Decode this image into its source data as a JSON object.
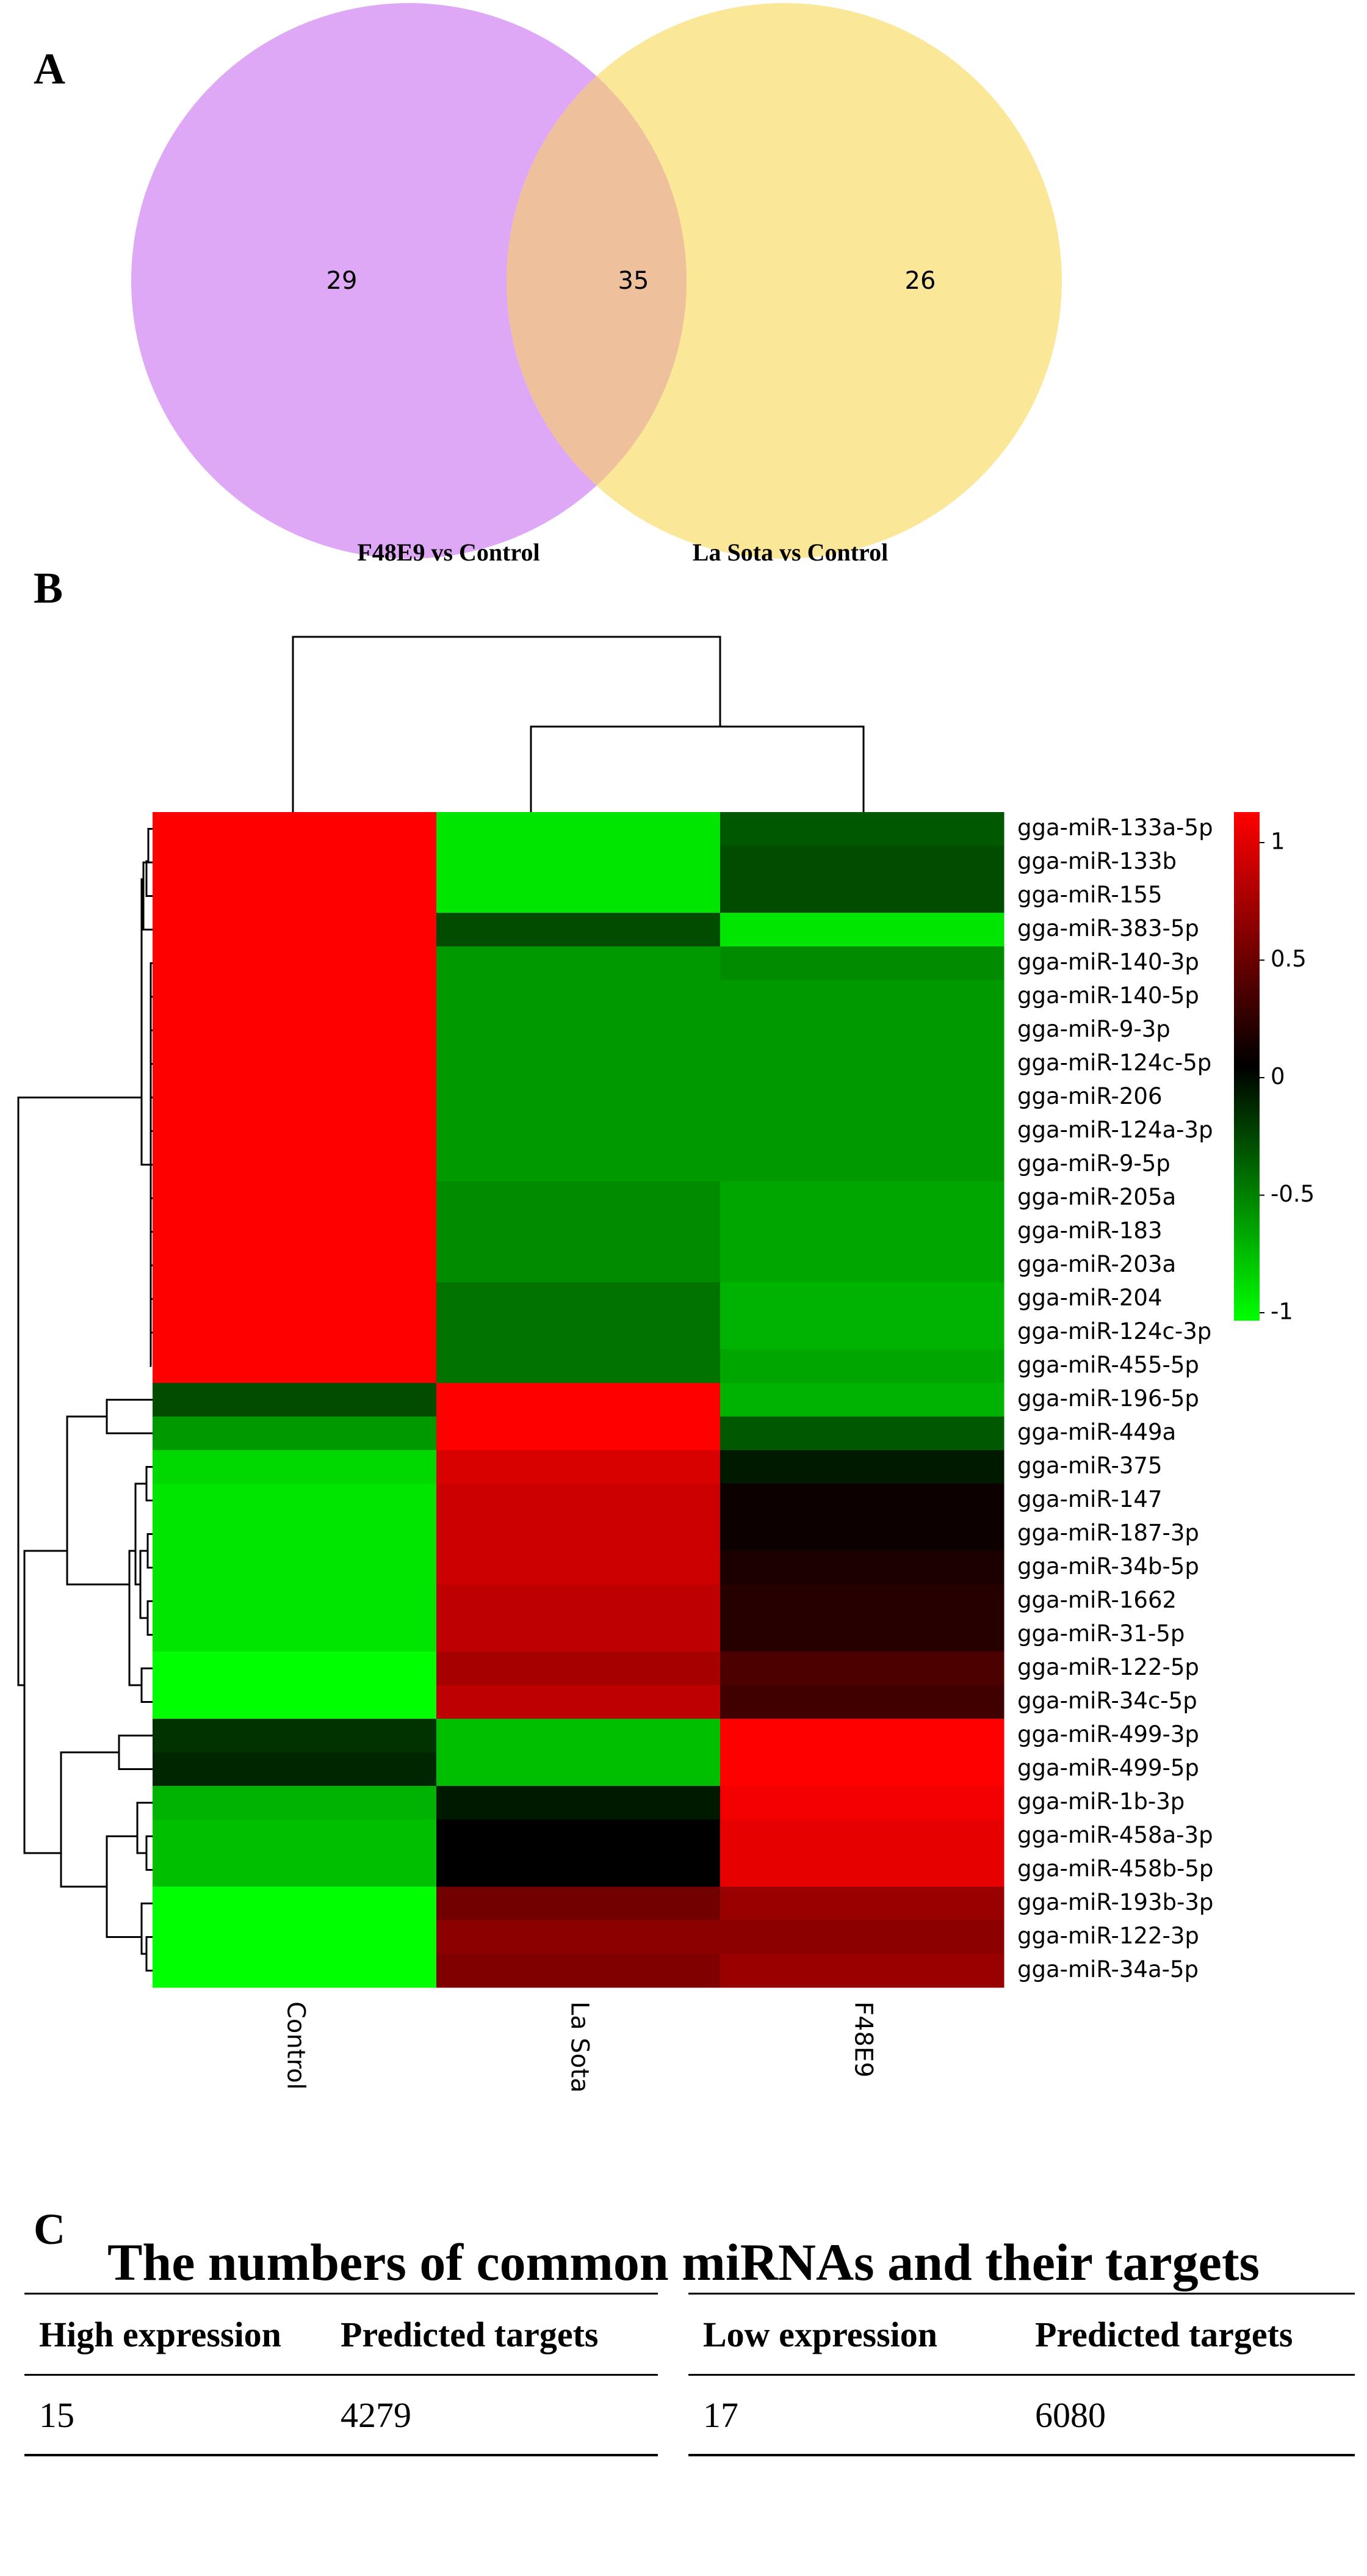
{
  "panels": {
    "a": "A",
    "b": "B",
    "c": "C"
  },
  "colors": {
    "venn_left": "#dfa8f6",
    "venn_right": "#fbe798",
    "venn_overlap": "#eec19c",
    "heat_high": "#ff0000",
    "heat_mid": "#000000",
    "heat_low": "#00ff00"
  },
  "chart_data": [
    {
      "type": "venn",
      "sets": [
        {
          "name": "F48E9 vs Control",
          "only": 29
        },
        {
          "name": "La Sota vs Control",
          "only": 26
        }
      ],
      "intersection": 35
    },
    {
      "type": "heatmap",
      "columns": [
        "Control",
        "La Sota",
        "F48E9"
      ],
      "column_dendrogram": "Control separate; (La Sota, F48E9) clustered",
      "row_dendrogram": "left side, hierarchical clustering of rows",
      "colorbar": {
        "min": -1,
        "max": 1,
        "ticks": [
          1,
          0.5,
          0,
          -0.5,
          -1
        ],
        "tick_labels": [
          "1",
          "0.5",
          "0",
          "-0.5",
          "-1"
        ]
      },
      "rows": [
        {
          "label": "gga-miR-133a-5p",
          "values": [
            1.0,
            -0.9,
            -0.35
          ]
        },
        {
          "label": "gga-miR-133b",
          "values": [
            1.0,
            -0.9,
            -0.3
          ]
        },
        {
          "label": "gga-miR-155",
          "values": [
            1.0,
            -0.9,
            -0.3
          ]
        },
        {
          "label": "gga-miR-383-5p",
          "values": [
            1.0,
            -0.3,
            -0.9
          ]
        },
        {
          "label": "gga-miR-140-3p",
          "values": [
            1.0,
            -0.6,
            -0.55
          ]
        },
        {
          "label": "gga-miR-140-5p",
          "values": [
            1.0,
            -0.6,
            -0.6
          ]
        },
        {
          "label": "gga-miR-9-3p",
          "values": [
            1.0,
            -0.6,
            -0.6
          ]
        },
        {
          "label": "gga-miR-124c-5p",
          "values": [
            1.0,
            -0.6,
            -0.6
          ]
        },
        {
          "label": "gga-miR-206",
          "values": [
            1.0,
            -0.6,
            -0.6
          ]
        },
        {
          "label": "gga-miR-124a-3p",
          "values": [
            1.0,
            -0.6,
            -0.6
          ]
        },
        {
          "label": "gga-miR-9-5p",
          "values": [
            1.0,
            -0.6,
            -0.6
          ]
        },
        {
          "label": "gga-miR-205a",
          "values": [
            1.0,
            -0.55,
            -0.65
          ]
        },
        {
          "label": "gga-miR-183",
          "values": [
            1.0,
            -0.55,
            -0.65
          ]
        },
        {
          "label": "gga-miR-203a",
          "values": [
            1.0,
            -0.55,
            -0.65
          ]
        },
        {
          "label": "gga-miR-204",
          "values": [
            1.0,
            -0.45,
            -0.7
          ]
        },
        {
          "label": "gga-miR-124c-3p",
          "values": [
            1.0,
            -0.45,
            -0.7
          ]
        },
        {
          "label": "gga-miR-455-5p",
          "values": [
            1.0,
            -0.45,
            -0.65
          ]
        },
        {
          "label": "gga-miR-196-5p",
          "values": [
            -0.3,
            1.0,
            -0.7
          ]
        },
        {
          "label": "gga-miR-449a",
          "values": [
            -0.6,
            1.0,
            -0.35
          ]
        },
        {
          "label": "gga-miR-375",
          "values": [
            -0.85,
            0.85,
            -0.1
          ]
        },
        {
          "label": "gga-miR-147",
          "values": [
            -0.9,
            0.8,
            0.05
          ]
        },
        {
          "label": "gga-miR-187-3p",
          "values": [
            -0.9,
            0.8,
            0.05
          ]
        },
        {
          "label": "gga-miR-34b-5p",
          "values": [
            -0.9,
            0.8,
            0.1
          ]
        },
        {
          "label": "gga-miR-1662",
          "values": [
            -0.9,
            0.75,
            0.15
          ]
        },
        {
          "label": "gga-miR-31-5p",
          "values": [
            -0.9,
            0.75,
            0.15
          ]
        },
        {
          "label": "gga-miR-122-5p",
          "values": [
            -1.0,
            0.65,
            0.3
          ]
        },
        {
          "label": "gga-miR-34c-5p",
          "values": [
            -1.0,
            0.75,
            0.25
          ]
        },
        {
          "label": "gga-miR-499-3p",
          "values": [
            -0.2,
            -0.75,
            1.0
          ]
        },
        {
          "label": "gga-miR-499-5p",
          "values": [
            -0.15,
            -0.75,
            1.0
          ]
        },
        {
          "label": "gga-miR-1b-3p",
          "values": [
            -0.7,
            -0.1,
            0.95
          ]
        },
        {
          "label": "gga-miR-458a-3p",
          "values": [
            -0.75,
            0.0,
            0.9
          ]
        },
        {
          "label": "gga-miR-458b-5p",
          "values": [
            -0.75,
            0.0,
            0.9
          ]
        },
        {
          "label": "gga-miR-193b-3p",
          "values": [
            -1.0,
            0.45,
            0.6
          ]
        },
        {
          "label": "gga-miR-122-3p",
          "values": [
            -1.0,
            0.55,
            0.55
          ]
        },
        {
          "label": "gga-miR-34a-5p",
          "values": [
            -1.0,
            0.5,
            0.6
          ]
        }
      ]
    }
  ],
  "table": {
    "title": "The numbers of common miRNAs and their targets",
    "headers": [
      "High expression",
      "Predicted targets",
      "Low expression",
      "Predicted targets"
    ],
    "row": [
      "15",
      "4279",
      "17",
      "6080"
    ]
  }
}
